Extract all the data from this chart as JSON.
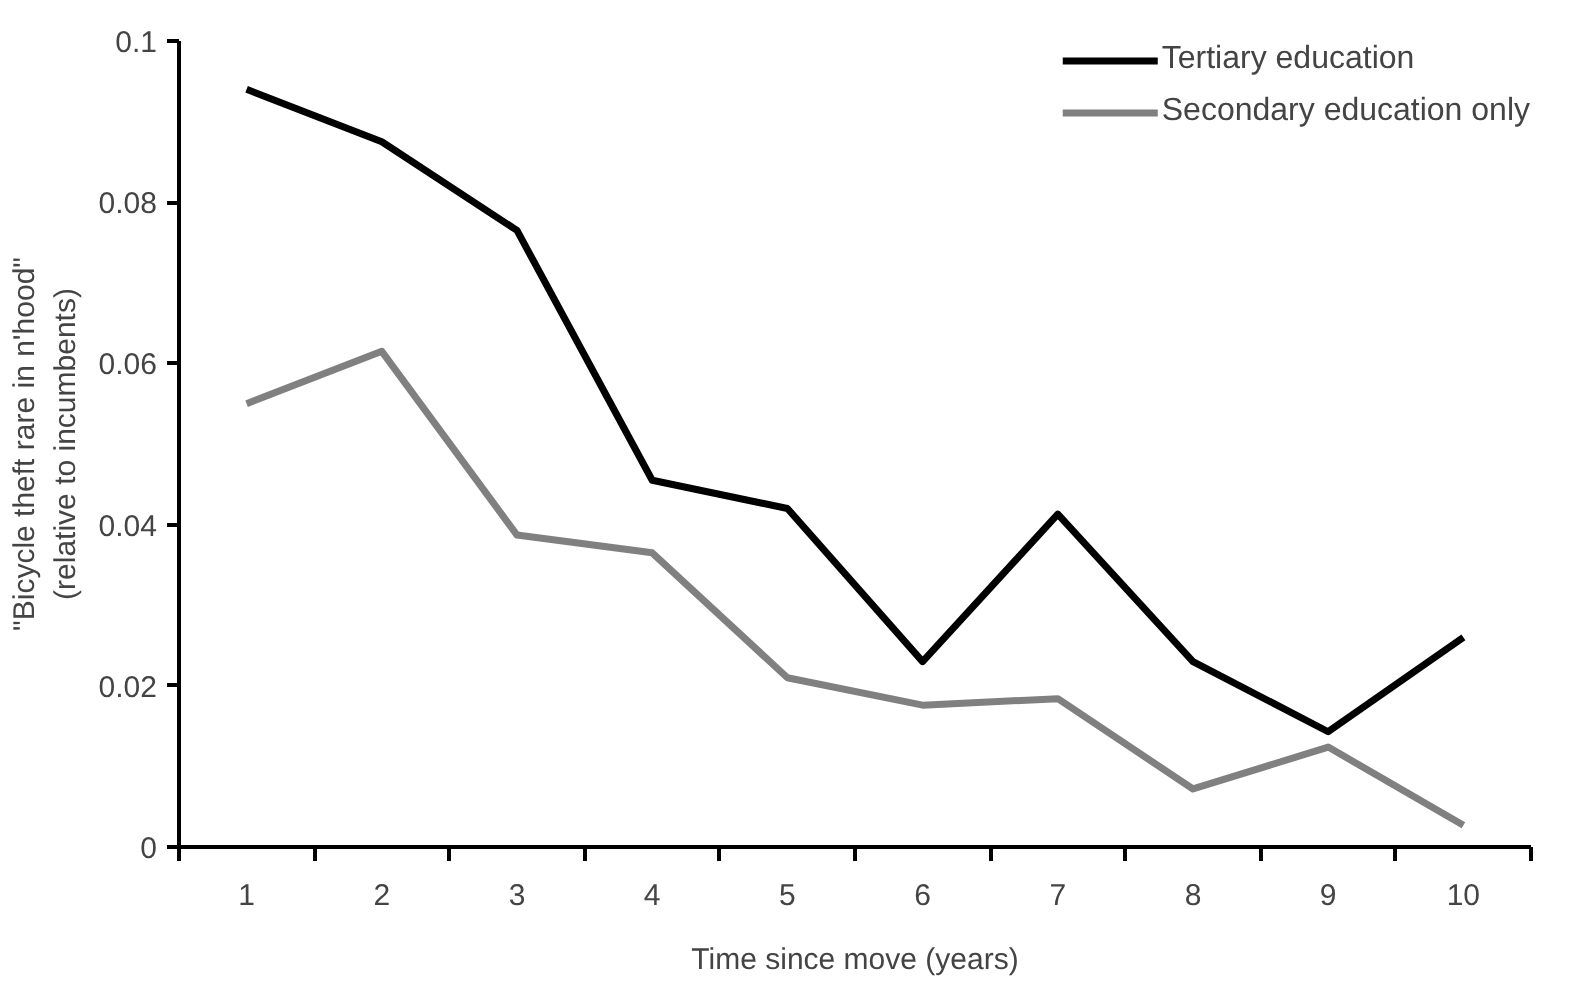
{
  "chart_data": {
    "type": "line",
    "xlabel": "Time since move (years)",
    "ylabel": "\"Bicycle theft rare in n'hood\"\n(relative to incumbents)",
    "categories": [
      "1",
      "2",
      "3",
      "4",
      "5",
      "6",
      "7",
      "8",
      "9",
      "10"
    ],
    "series": [
      {
        "name": "Tertiary education",
        "color": "#000000",
        "values": [
          0.094,
          0.0875,
          0.0765,
          0.0455,
          0.042,
          0.023,
          0.0413,
          0.023,
          0.0143,
          0.026
        ]
      },
      {
        "name": "Secondary education only",
        "color": "#808080",
        "values": [
          0.055,
          0.0615,
          0.0387,
          0.0365,
          0.021,
          0.0176,
          0.0184,
          0.0072,
          0.0124,
          0.0027
        ]
      }
    ],
    "ylim": [
      0,
      0.1
    ],
    "yticks": [
      0,
      0.02,
      0.04,
      0.06,
      0.08,
      0.1
    ],
    "grid": false,
    "legend": "top right",
    "marker": "none",
    "line_style": "solid"
  }
}
